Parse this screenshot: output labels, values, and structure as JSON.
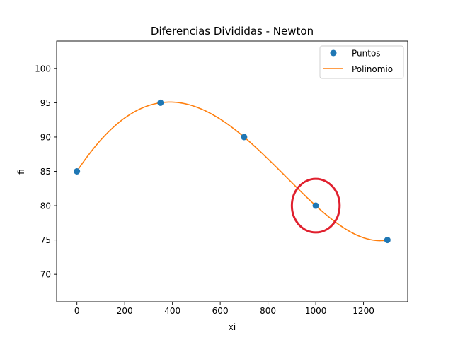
{
  "chart_data": {
    "type": "line",
    "title": "Diferencias Divididas - Newton",
    "xlabel": "xi",
    "ylabel": "fi",
    "xlim": [
      -85,
      1385
    ],
    "ylim": [
      66,
      104
    ],
    "xticks": [
      0,
      200,
      400,
      600,
      800,
      1000,
      1200
    ],
    "yticks": [
      70,
      75,
      80,
      85,
      90,
      95,
      100
    ],
    "grid": false,
    "legend_position": "top-right",
    "series": [
      {
        "name": "Puntos",
        "kind": "scatter",
        "color": "#1f77b4",
        "x": [
          0,
          350,
          700,
          1000,
          1300
        ],
        "y": [
          85,
          95,
          90,
          80,
          75
        ]
      },
      {
        "name": "Polinomio",
        "kind": "line",
        "color": "#ff7f0e",
        "x_range": [
          0,
          1300
        ],
        "interpolates": "Puntos"
      }
    ],
    "annotations": [
      {
        "type": "circle",
        "color": "#e0202e",
        "x": 1000,
        "y": 80,
        "rx_data": 100,
        "ry_data": 3.9
      }
    ]
  }
}
